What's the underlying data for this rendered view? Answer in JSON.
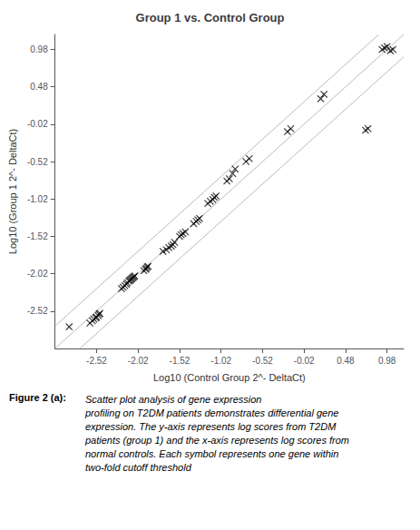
{
  "chart_data": {
    "type": "scatter",
    "title": "Group 1 vs. Control Group",
    "xlabel": "Log10 (Control Group 2^- DeltaCt)",
    "ylabel": "Log10 (Group 1 2^- DeltaCt)",
    "xlim": [
      -3.02,
      1.18
    ],
    "ylim": [
      -3.02,
      1.18
    ],
    "xticks": [
      -2.52,
      -2.02,
      -1.52,
      -1.02,
      -0.52,
      -0.02,
      0.48,
      0.98
    ],
    "yticks": [
      -2.52,
      -2.02,
      -1.52,
      -1.02,
      -0.52,
      -0.02,
      0.48,
      0.98
    ],
    "grid": false,
    "series": [
      {
        "type": "line",
        "color": "#bbbbbb",
        "x": [
          -3.02,
          1.18
        ],
        "values": [
          -3.02,
          1.18
        ]
      },
      {
        "type": "line",
        "color": "#bbbbbb",
        "x": [
          -3.02,
          0.88
        ],
        "values": [
          -2.72,
          1.18
        ]
      },
      {
        "type": "line",
        "color": "#bbbbbb",
        "x": [
          -2.72,
          1.18
        ],
        "values": [
          -3.02,
          0.88
        ]
      },
      {
        "type": "scatter",
        "color": "#000000",
        "marker": "x",
        "x": [
          -2.85,
          -2.6,
          -2.57,
          -2.55,
          -2.53,
          -2.52,
          -2.5,
          -2.49,
          -2.48,
          -2.22,
          -2.2,
          -2.18,
          -2.16,
          -2.15,
          -2.13,
          -2.12,
          -2.11,
          -2.1,
          -2.09,
          -2.08,
          -2.07,
          -2.06,
          -1.95,
          -1.93,
          -1.92,
          -1.91,
          -1.9,
          -1.72,
          -1.68,
          -1.65,
          -1.62,
          -1.6,
          -1.58,
          -1.52,
          -1.5,
          -1.48,
          -1.45,
          -1.35,
          -1.32,
          -1.3,
          -1.28,
          -1.18,
          -1.15,
          -1.12,
          -1.1,
          -1.08,
          -0.95,
          -0.92,
          -0.88,
          -0.85,
          -0.72,
          -0.68,
          -0.22,
          -0.18,
          0.18,
          0.22,
          0.72,
          0.75,
          0.92,
          0.95,
          0.98,
          1.02,
          1.05
        ],
        "values": [
          -2.73,
          -2.68,
          -2.65,
          -2.63,
          -2.61,
          -2.6,
          -2.58,
          -2.56,
          -2.55,
          -2.22,
          -2.2,
          -2.18,
          -2.16,
          -2.14,
          -2.12,
          -2.11,
          -2.1,
          -2.09,
          -2.08,
          -2.07,
          -2.06,
          -2.05,
          -1.98,
          -1.96,
          -1.95,
          -1.93,
          -1.92,
          -1.72,
          -1.7,
          -1.67,
          -1.65,
          -1.63,
          -1.6,
          -1.52,
          -1.5,
          -1.48,
          -1.46,
          -1.35,
          -1.32,
          -1.3,
          -1.28,
          -1.08,
          -1.05,
          -1.03,
          -1.0,
          -0.98,
          -0.78,
          -0.75,
          -0.68,
          -0.62,
          -0.52,
          -0.48,
          -0.12,
          -0.08,
          0.32,
          0.38,
          -0.1,
          -0.08,
          0.98,
          1.0,
          1.02,
          0.96,
          0.98
        ]
      }
    ],
    "annotations": [
      "Figure 2 (a):",
      "Scatter plot analysis of gene expression\nprofiling on T2DM patients demonstrates differential gene\nexpression. The y-axis represents log scores from T2DM\npatients (group 1) and the x-axis represents log scores from\nnormal controls. Each symbol represents one gene within\ntwo-fold cutoff threshold"
    ]
  }
}
